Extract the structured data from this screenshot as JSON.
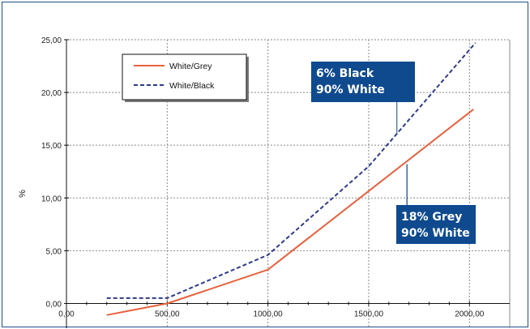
{
  "chart_data": {
    "type": "line",
    "title": "",
    "xlabel": "",
    "ylabel": "%",
    "xlim": [
      0,
      2200
    ],
    "ylim": [
      -2.5,
      25
    ],
    "x_ticks": [
      0,
      500,
      1000,
      1500,
      2000
    ],
    "x_tick_labels": [
      "0,00",
      "500,00",
      "1000,00",
      "1500,00",
      "2000,00"
    ],
    "y_ticks": [
      0,
      5,
      10,
      15,
      20,
      25
    ],
    "y_tick_labels": [
      "0,00",
      "5,00",
      "10,00",
      "15,00",
      "20,00",
      "25,00"
    ],
    "grid": true,
    "legend_position": "top-left",
    "series": [
      {
        "name": "White/Grey",
        "color": "#e8603c",
        "style": "solid",
        "x": [
          200,
          500,
          1000,
          2020
        ],
        "y": [
          -1.1,
          0,
          3.2,
          18.4
        ]
      },
      {
        "name": "White/Black",
        "color": "#2e3a8c",
        "style": "dashed",
        "x": [
          200,
          500,
          1000,
          1500,
          2030
        ],
        "y": [
          0.5,
          0.5,
          4.6,
          13,
          24.7
        ]
      }
    ],
    "annotations": [
      {
        "lines": [
          "6% Black",
          "90% White"
        ],
        "series": "White/Black",
        "x": 1640,
        "y": 16
      },
      {
        "lines": [
          "18% Grey",
          "90% White"
        ],
        "series": "White/Grey",
        "x": 1690,
        "y": 13.2
      }
    ],
    "colors": {
      "frame": "#1b4f8a",
      "callout_bg": "#0f4a8f",
      "grid": "#8a8a8a"
    }
  }
}
